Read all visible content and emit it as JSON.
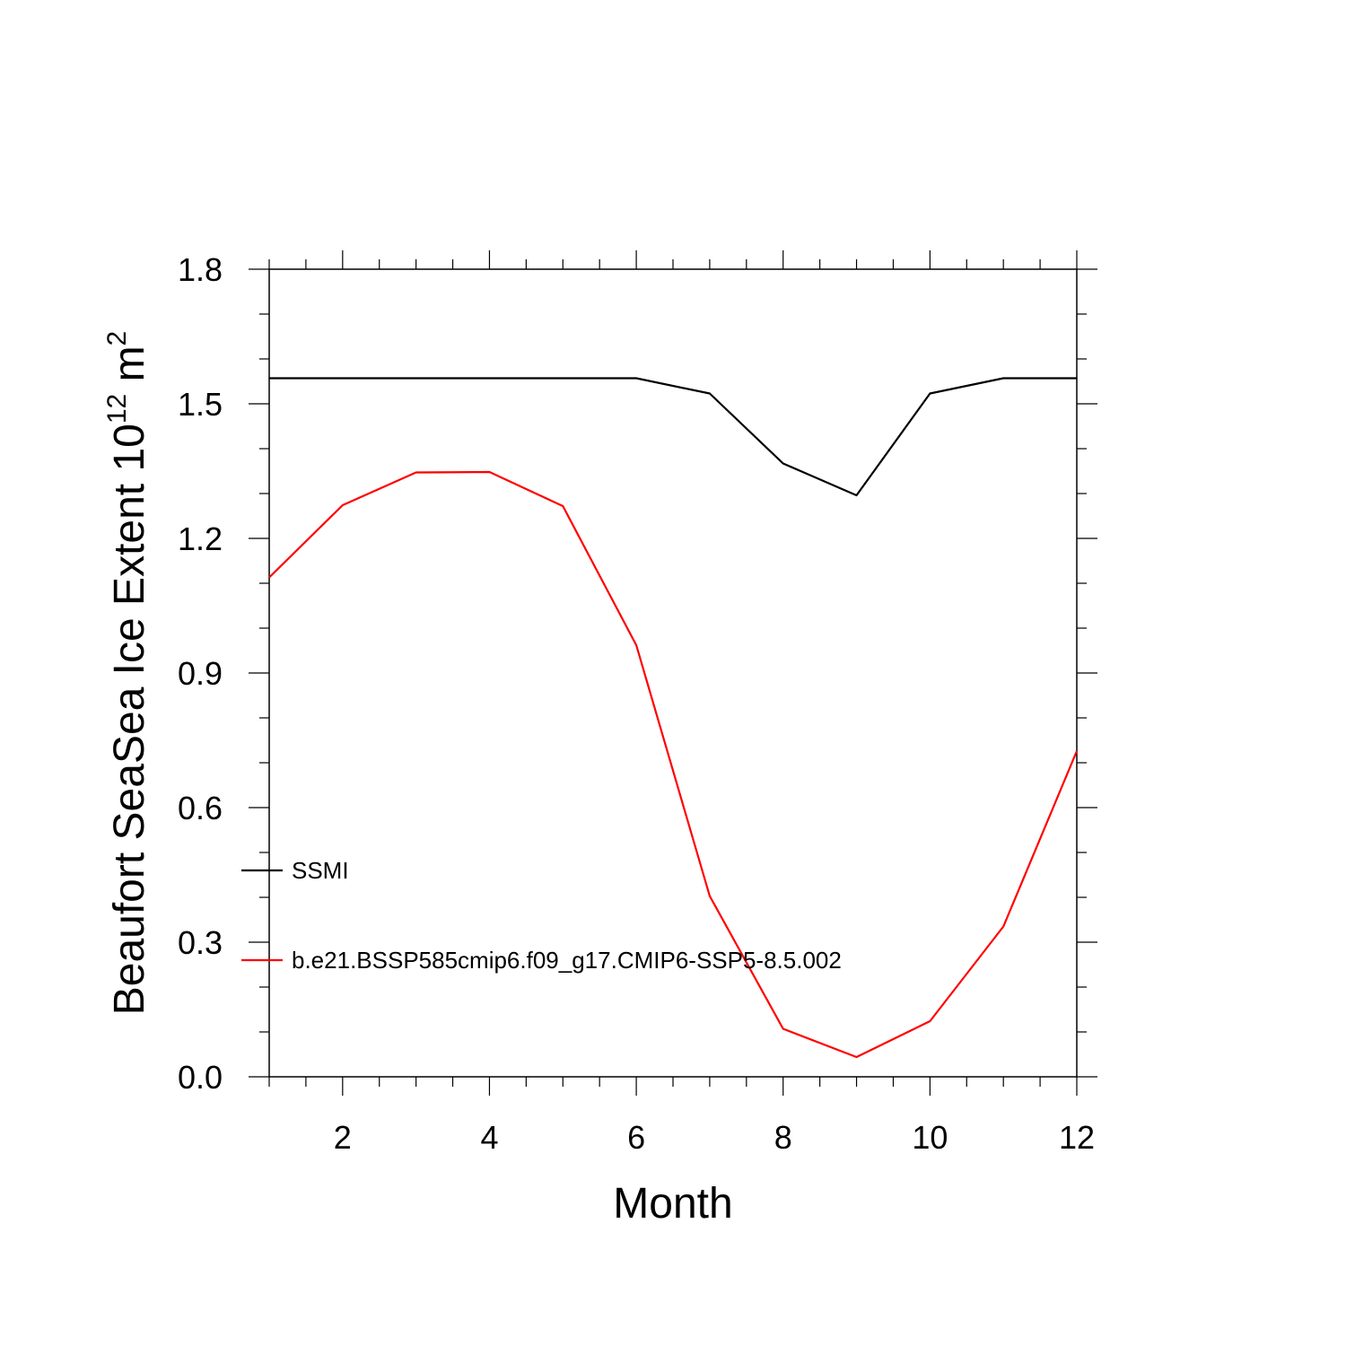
{
  "chart_data": {
    "type": "line",
    "title": "",
    "xlabel": "Month",
    "ylabel": "Beaufort SeaSea Ice Extent 10",
    "ylabel_exp": "12",
    "ylabel_unit": " m",
    "ylabel_unit_exp": "2",
    "xlim": [
      1,
      12
    ],
    "ylim": [
      0.0,
      1.8
    ],
    "xticks": [
      2,
      4,
      6,
      8,
      10,
      12
    ],
    "xtick_labels": [
      "2",
      "4",
      "6",
      "8",
      "10",
      "12"
    ],
    "yticks": [
      0.0,
      0.3,
      0.6,
      0.9,
      1.2,
      1.5,
      1.8
    ],
    "ytick_labels": [
      "0.0",
      "0.3",
      "0.6",
      "0.9",
      "1.2",
      "1.5",
      "1.8"
    ],
    "grid": false,
    "legend_position": "left",
    "x": [
      1,
      2,
      3,
      4,
      5,
      6,
      7,
      8,
      9,
      10,
      11,
      12
    ],
    "series": [
      {
        "name": "SSMI",
        "color": "#000000",
        "values": [
          1.557,
          1.557,
          1.557,
          1.557,
          1.557,
          1.557,
          1.523,
          1.367,
          1.296,
          1.523,
          1.557,
          1.557
        ]
      },
      {
        "name": "b.e21.BSSP585cmip6.f09_g17.CMIP6-SSP5-8.5.002",
        "color": "#ff0000",
        "values": [
          1.113,
          1.274,
          1.347,
          1.348,
          1.272,
          0.962,
          0.403,
          0.107,
          0.044,
          0.124,
          0.335,
          0.726
        ]
      }
    ]
  }
}
